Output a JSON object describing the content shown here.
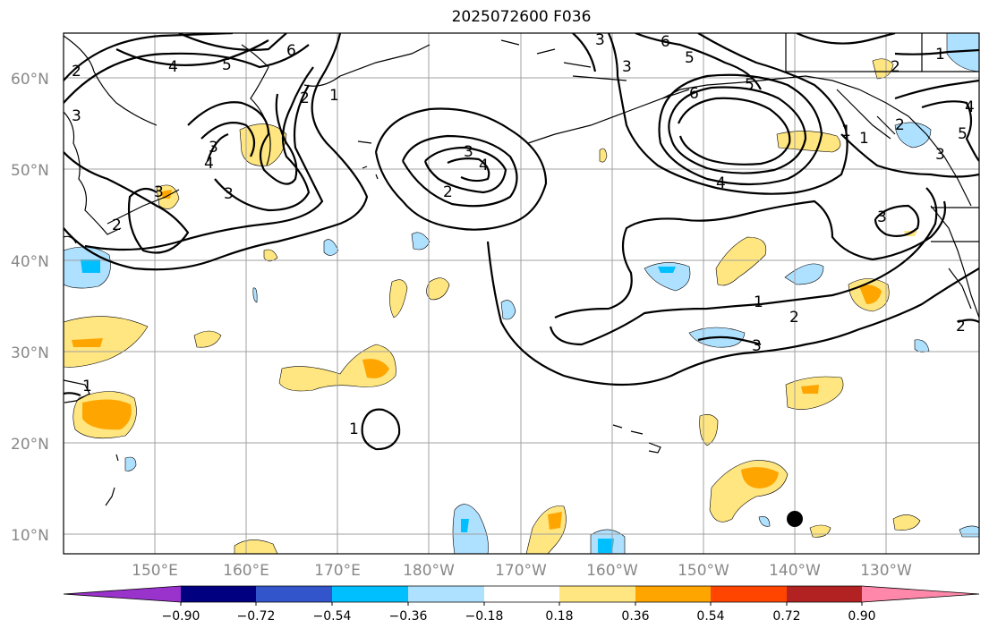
{
  "title": "2025072600 F036",
  "map": {
    "lat_labels": [
      "60°N",
      "50°N",
      "40°N",
      "30°N",
      "20°N",
      "10°N"
    ],
    "lon_labels": [
      "150°E",
      "160°E",
      "170°E",
      "180°W",
      "170°W",
      "160°W",
      "150°W",
      "140°W",
      "130°W"
    ],
    "contour_labels": [
      "1",
      "2",
      "3",
      "4",
      "5",
      "6",
      "1",
      "2",
      "3",
      "4",
      "1",
      "2",
      "3",
      "4",
      "5",
      "6",
      "1",
      "2",
      "3",
      "1",
      "2",
      "1",
      "2",
      "3",
      "2",
      "3",
      "1",
      "2",
      "3",
      "4",
      "5",
      "6",
      "1",
      "2",
      "3",
      "4",
      "5"
    ]
  },
  "colorbar": {
    "tick_labels": [
      "−0.90",
      "−0.72",
      "−0.54",
      "−0.36",
      "−0.18",
      "0.18",
      "0.36",
      "0.54",
      "0.72",
      "0.90"
    ],
    "colors": [
      "#9933cc",
      "#000080",
      "#3355cc",
      "#00bfff",
      "#aee0ff",
      "#ffffff",
      "#ffe680",
      "#ffa500",
      "#ff4500",
      "#b22222",
      "#ff88aa"
    ]
  },
  "colors": {
    "light_blue": "#aee0ff",
    "cyan": "#00bfff",
    "yellow": "#ffe680",
    "orange": "#ffa500",
    "grid": "#a0a0a0"
  }
}
